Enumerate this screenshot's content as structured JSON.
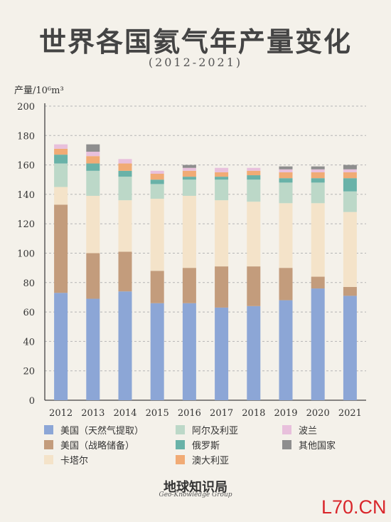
{
  "title": "世界各国氦气年产量变化",
  "subtitle": "(2012-2021)",
  "unit_label": "产量/10⁶m³",
  "brand": "地球知识局",
  "brand_sub": "Geo-Knowledge Group",
  "corner_mark": "L70.CN",
  "chart_data": {
    "type": "bar",
    "stacked": true,
    "categories": [
      "2012",
      "2013",
      "2014",
      "2015",
      "2016",
      "2017",
      "2018",
      "2019",
      "2020",
      "2021"
    ],
    "ylim": [
      0,
      200
    ],
    "yticks": [
      0,
      20,
      40,
      60,
      80,
      100,
      120,
      140,
      160,
      180,
      200
    ],
    "grid": true,
    "legend_position": "bottom",
    "series": [
      {
        "name": "美国（天然气提取）",
        "color": "#8ca6d6",
        "values": [
          73,
          69,
          74,
          66,
          66,
          63,
          64,
          68,
          76,
          71
        ]
      },
      {
        "name": "美国（战略储备）",
        "color": "#c39c7c",
        "values": [
          60,
          31,
          27,
          22,
          24,
          28,
          27,
          22,
          8,
          6
        ]
      },
      {
        "name": "卡塔尔",
        "color": "#f4e3c9",
        "values": [
          12,
          39,
          35,
          49,
          49,
          45,
          44,
          44,
          50,
          51
        ]
      },
      {
        "name": "阿尔及利亚",
        "color": "#bcd8c8",
        "values": [
          16,
          17,
          16,
          10,
          11,
          14,
          15,
          14,
          14,
          14
        ]
      },
      {
        "name": "俄罗斯",
        "color": "#69b2a8",
        "values": [
          6,
          5,
          4,
          3,
          2,
          2,
          3,
          3,
          3,
          9
        ]
      },
      {
        "name": "澳大利亚",
        "color": "#f1ab75",
        "values": [
          4,
          5,
          5,
          4,
          4,
          3,
          3,
          4,
          4,
          4
        ]
      },
      {
        "name": "波兰",
        "color": "#e8c0dc",
        "values": [
          3,
          3,
          3,
          2,
          2,
          3,
          2,
          2,
          2,
          2
        ]
      },
      {
        "name": "其他国家",
        "color": "#8e8e8e",
        "values": [
          0,
          5,
          0,
          0,
          2,
          0,
          0,
          2,
          2,
          3
        ]
      }
    ]
  }
}
